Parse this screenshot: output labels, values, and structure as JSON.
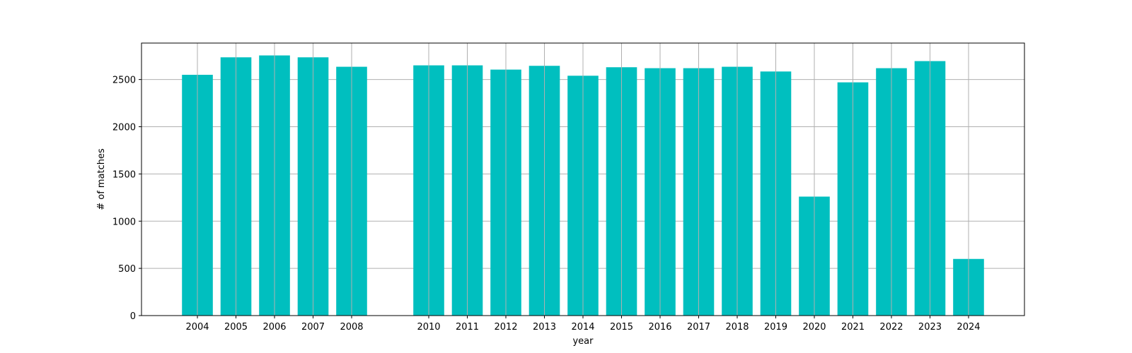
{
  "chart_data": {
    "type": "bar",
    "title": "",
    "xlabel": "year",
    "ylabel": "# of matches",
    "categories": [
      2004,
      2005,
      2006,
      2007,
      2008,
      2010,
      2011,
      2012,
      2013,
      2014,
      2015,
      2016,
      2017,
      2018,
      2019,
      2020,
      2021,
      2022,
      2023,
      2024
    ],
    "values": [
      2550,
      2735,
      2755,
      2735,
      2635,
      2650,
      2650,
      2605,
      2645,
      2540,
      2630,
      2620,
      2620,
      2635,
      2585,
      1260,
      2470,
      2620,
      2695,
      600
    ],
    "xlim": [
      2002.55,
      2025.45
    ],
    "ylim": [
      0,
      2886
    ],
    "yticks": [
      0,
      500,
      1000,
      1500,
      2000,
      2500
    ],
    "grid": true,
    "bar_color": "#00bfbf",
    "grid_color": "#b0b0b0"
  }
}
